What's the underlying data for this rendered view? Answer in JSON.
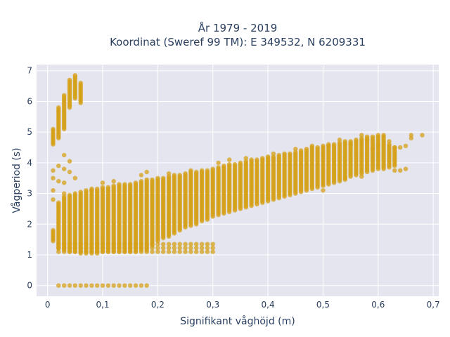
{
  "chart_data": {
    "type": "scatter",
    "title": "År 1979 - 2019",
    "subtitle": "Koordinat (Sweref 99 TM): E 349532, N 6209331",
    "xlabel": "Signifikant våghöjd (m)",
    "ylabel": "Vågperiod (s)",
    "xlim": [
      -0.02,
      0.71
    ],
    "ylim": [
      -0.35,
      7.2
    ],
    "x_ticks": [
      0,
      0.1,
      0.2,
      0.3,
      0.4,
      0.5,
      0.6,
      0.7
    ],
    "x_tick_labels": [
      "0",
      "0,1",
      "0,2",
      "0,3",
      "0,4",
      "0,5",
      "0,6",
      "0,7"
    ],
    "y_ticks": [
      0,
      1,
      2,
      3,
      4,
      5,
      6,
      7
    ],
    "y_tick_labels": [
      "0",
      "1",
      "2",
      "3",
      "4",
      "5",
      "6",
      "7"
    ],
    "grid": true,
    "marker_color": "#D4A017",
    "plot_background": "#E5E5EF",
    "main_band": [
      [
        0.01,
        1.45,
        1.8
      ],
      [
        0.02,
        1.2,
        2.7
      ],
      [
        0.03,
        1.15,
        2.9
      ],
      [
        0.04,
        1.1,
        2.95
      ],
      [
        0.05,
        1.1,
        3.0
      ],
      [
        0.06,
        1.05,
        3.05
      ],
      [
        0.07,
        1.05,
        3.1
      ],
      [
        0.08,
        1.05,
        3.15
      ],
      [
        0.09,
        1.05,
        3.15
      ],
      [
        0.1,
        1.1,
        3.2
      ],
      [
        0.11,
        1.1,
        3.2
      ],
      [
        0.12,
        1.1,
        3.25
      ],
      [
        0.13,
        1.1,
        3.3
      ],
      [
        0.14,
        1.1,
        3.3
      ],
      [
        0.15,
        1.1,
        3.3
      ],
      [
        0.16,
        1.1,
        3.35
      ],
      [
        0.17,
        1.15,
        3.4
      ],
      [
        0.18,
        1.15,
        3.45
      ],
      [
        0.19,
        1.3,
        3.45
      ],
      [
        0.2,
        1.45,
        3.5
      ],
      [
        0.21,
        1.55,
        3.5
      ],
      [
        0.22,
        1.6,
        3.55
      ],
      [
        0.23,
        1.7,
        3.6
      ],
      [
        0.24,
        1.8,
        3.6
      ],
      [
        0.25,
        1.9,
        3.65
      ],
      [
        0.26,
        1.95,
        3.7
      ],
      [
        0.27,
        2.0,
        3.7
      ],
      [
        0.28,
        2.1,
        3.75
      ],
      [
        0.29,
        2.15,
        3.75
      ],
      [
        0.3,
        2.25,
        3.8
      ],
      [
        0.31,
        2.3,
        3.85
      ],
      [
        0.32,
        2.35,
        3.9
      ],
      [
        0.33,
        2.4,
        3.95
      ],
      [
        0.34,
        2.45,
        3.95
      ],
      [
        0.35,
        2.5,
        4.0
      ],
      [
        0.36,
        2.55,
        4.05
      ],
      [
        0.37,
        2.6,
        4.1
      ],
      [
        0.38,
        2.65,
        4.1
      ],
      [
        0.39,
        2.7,
        4.15
      ],
      [
        0.4,
        2.75,
        4.2
      ],
      [
        0.41,
        2.8,
        4.2
      ],
      [
        0.42,
        2.85,
        4.25
      ],
      [
        0.43,
        2.9,
        4.3
      ],
      [
        0.44,
        2.95,
        4.3
      ],
      [
        0.45,
        3.0,
        4.35
      ],
      [
        0.46,
        3.05,
        4.4
      ],
      [
        0.47,
        3.1,
        4.45
      ],
      [
        0.48,
        3.15,
        4.5
      ],
      [
        0.49,
        3.2,
        4.5
      ],
      [
        0.5,
        3.25,
        4.55
      ],
      [
        0.51,
        3.3,
        4.6
      ],
      [
        0.52,
        3.35,
        4.6
      ],
      [
        0.53,
        3.4,
        4.65
      ],
      [
        0.54,
        3.45,
        4.7
      ],
      [
        0.55,
        3.55,
        4.7
      ],
      [
        0.56,
        3.6,
        4.75
      ],
      [
        0.57,
        3.65,
        4.8
      ],
      [
        0.58,
        3.7,
        4.85
      ],
      [
        0.59,
        3.75,
        4.85
      ],
      [
        0.6,
        3.8,
        4.9
      ],
      [
        0.61,
        3.8,
        4.9
      ],
      [
        0.62,
        3.85,
        4.6
      ],
      [
        0.63,
        3.9,
        4.5
      ]
    ],
    "high_period_cluster": [
      [
        0.01,
        4.6,
        5.1
      ],
      [
        0.02,
        4.8,
        5.8
      ],
      [
        0.03,
        5.1,
        6.2
      ],
      [
        0.04,
        5.8,
        6.7
      ],
      [
        0.05,
        6.1,
        6.85
      ],
      [
        0.06,
        5.95,
        6.6
      ]
    ],
    "low_period_line": {
      "x": [
        0.02,
        0.3
      ],
      "y": [
        1.1,
        1.35
      ]
    },
    "zero_period_line": {
      "x": [
        0.02,
        0.18
      ],
      "y": 0
    },
    "outliers": [
      [
        0.01,
        3.75
      ],
      [
        0.01,
        3.5
      ],
      [
        0.01,
        2.8
      ],
      [
        0.01,
        3.1
      ],
      [
        0.02,
        3.4
      ],
      [
        0.02,
        3.9
      ],
      [
        0.03,
        4.25
      ],
      [
        0.03,
        3.8
      ],
      [
        0.03,
        3.35
      ],
      [
        0.03,
        3.0
      ],
      [
        0.04,
        4.05
      ],
      [
        0.04,
        3.7
      ],
      [
        0.05,
        3.5
      ],
      [
        0.08,
        3.1
      ],
      [
        0.1,
        3.35
      ],
      [
        0.12,
        3.4
      ],
      [
        0.17,
        3.6
      ],
      [
        0.18,
        3.7
      ],
      [
        0.22,
        3.65
      ],
      [
        0.26,
        3.75
      ],
      [
        0.31,
        4.0
      ],
      [
        0.33,
        4.1
      ],
      [
        0.36,
        4.15
      ],
      [
        0.41,
        4.3
      ],
      [
        0.45,
        4.45
      ],
      [
        0.48,
        4.55
      ],
      [
        0.51,
        4.55
      ],
      [
        0.53,
        4.75
      ],
      [
        0.55,
        4.6
      ],
      [
        0.57,
        4.9
      ],
      [
        0.58,
        4.75
      ],
      [
        0.59,
        4.45
      ],
      [
        0.6,
        4.55
      ],
      [
        0.62,
        4.7
      ],
      [
        0.63,
        4.5
      ],
      [
        0.64,
        4.5
      ],
      [
        0.65,
        4.55
      ],
      [
        0.66,
        4.8
      ],
      [
        0.66,
        4.9
      ],
      [
        0.68,
        4.9
      ],
      [
        0.64,
        3.75
      ],
      [
        0.65,
        3.8
      ],
      [
        0.63,
        3.75
      ],
      [
        0.57,
        3.55
      ],
      [
        0.54,
        3.5
      ],
      [
        0.5,
        3.1
      ]
    ]
  }
}
